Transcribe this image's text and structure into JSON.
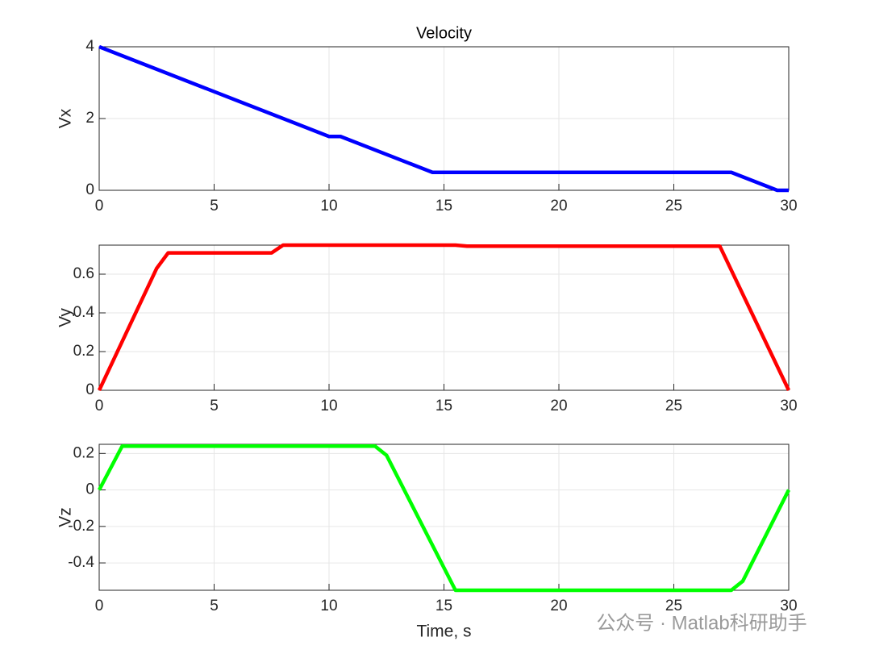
{
  "chart_data": [
    {
      "type": "line",
      "title": "Velocity",
      "ylabel": "Vx",
      "color": "#0000ff",
      "grid": true,
      "x": [
        0,
        10,
        10.5,
        14.5,
        27.5,
        29.5,
        30
      ],
      "values": [
        4,
        1.5,
        1.5,
        0.5,
        0.5,
        0,
        0
      ],
      "xlim": [
        0,
        30
      ],
      "xticks": [
        0,
        5,
        10,
        15,
        20,
        25,
        30
      ],
      "ylim": [
        0,
        4
      ],
      "yticks": [
        0,
        2,
        4
      ]
    },
    {
      "type": "line",
      "ylabel": "Vy",
      "color": "#ff0000",
      "grid": true,
      "x": [
        0,
        2.5,
        3,
        7.5,
        8,
        15.5,
        16,
        27,
        30
      ],
      "values": [
        0,
        0.63,
        0.71,
        0.71,
        0.75,
        0.75,
        0.745,
        0.745,
        0
      ],
      "xlim": [
        0,
        30
      ],
      "xticks": [
        0,
        5,
        10,
        15,
        20,
        25,
        30
      ],
      "ylim": [
        0,
        0.75
      ],
      "yticks": [
        0,
        0.2,
        0.4,
        0.6
      ]
    },
    {
      "type": "line",
      "ylabel": "Vz",
      "xlabel": "Time, s",
      "color": "#00ff00",
      "grid": true,
      "x": [
        0,
        1,
        12,
        12.5,
        15.5,
        27.5,
        28,
        30
      ],
      "values": [
        0,
        0.24,
        0.24,
        0.19,
        -0.55,
        -0.55,
        -0.5,
        0
      ],
      "xlim": [
        0,
        30
      ],
      "xticks": [
        0,
        5,
        10,
        15,
        20,
        25,
        30
      ],
      "ylim": [
        -0.55,
        0.25
      ],
      "yticks": [
        -0.4,
        -0.2,
        0,
        0.2
      ]
    }
  ],
  "watermark": "公众号 · Matlab科研助手"
}
